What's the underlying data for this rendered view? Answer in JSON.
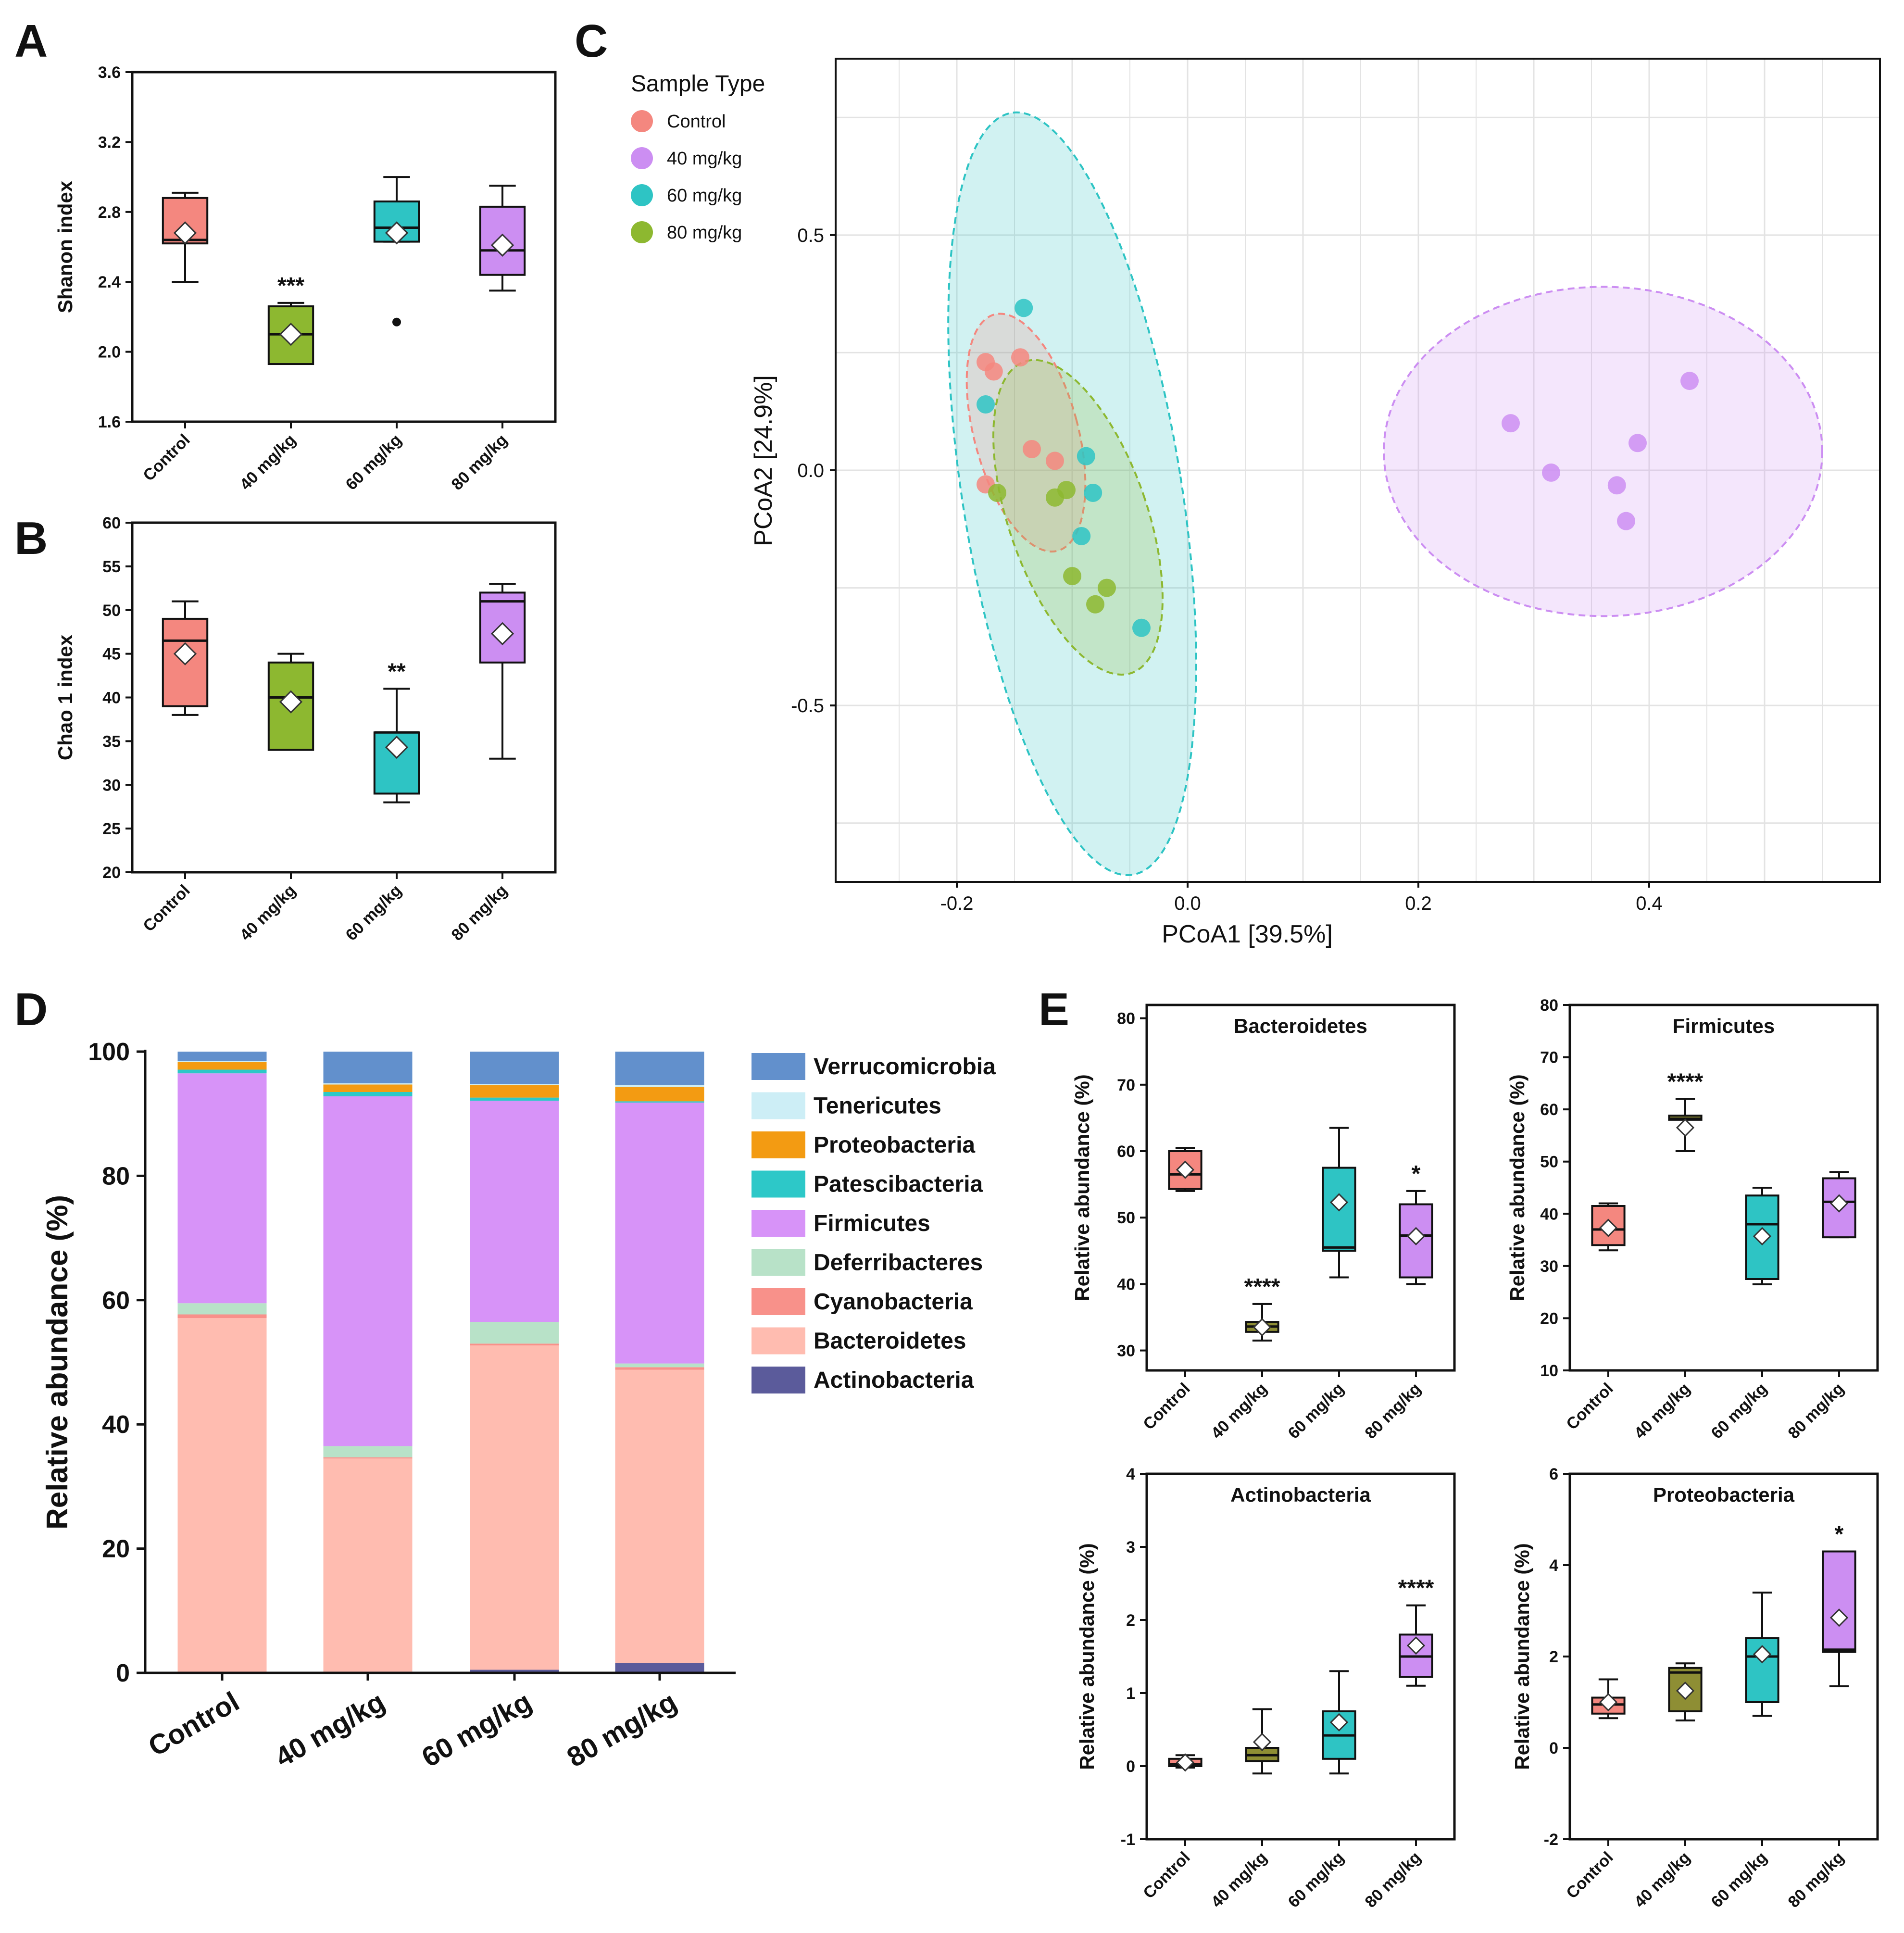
{
  "panel_labels": [
    "A",
    "B",
    "C",
    "D",
    "E"
  ],
  "colors": {
    "Control": "#f4877f",
    "40 mg/kg": "#8db830",
    "60 mg/kg": "#2ec4c4",
    "80 mg/kg": "#cc8ef2",
    "E_40 mg/kg": "#8e8e34"
  },
  "chart_data": [
    {
      "id": "A",
      "type": "box",
      "title": "",
      "ylabel": "Shanon index",
      "categories": [
        "Control",
        "40 mg/kg",
        "60 mg/kg",
        "80 mg/kg"
      ],
      "box_colors": [
        "#f4877f",
        "#8db830",
        "#2ec4c4",
        "#cc8ef2"
      ],
      "ylim": [
        1.6,
        3.6
      ],
      "yticks": [
        1.6,
        2.0,
        2.4,
        2.8,
        3.2,
        3.6
      ],
      "ytick_labels": [
        "1.6",
        "2.0",
        "2.4",
        "2.8",
        "3.2",
        "3.6"
      ],
      "boxes": [
        {
          "min": 2.4,
          "q1": 2.62,
          "median": 2.64,
          "q3": 2.88,
          "max": 2.91,
          "mean": 2.68,
          "outliers": [],
          "sig": ""
        },
        {
          "min": 1.93,
          "q1": 1.93,
          "median": 2.1,
          "q3": 2.26,
          "max": 2.28,
          "mean": 2.1,
          "outliers": [],
          "sig": "***"
        },
        {
          "min": 2.63,
          "q1": 2.63,
          "median": 2.71,
          "q3": 2.86,
          "max": 3.0,
          "mean": 2.68,
          "outliers": [
            2.17
          ],
          "sig": ""
        },
        {
          "min": 2.35,
          "q1": 2.44,
          "median": 2.58,
          "q3": 2.83,
          "max": 2.95,
          "mean": 2.61,
          "outliers": [],
          "sig": ""
        }
      ]
    },
    {
      "id": "B",
      "type": "box",
      "title": "",
      "ylabel": "Chao 1 index",
      "categories": [
        "Control",
        "40 mg/kg",
        "60 mg/kg",
        "80 mg/kg"
      ],
      "box_colors": [
        "#f4877f",
        "#8db830",
        "#2ec4c4",
        "#cc8ef2"
      ],
      "ylim": [
        20,
        60
      ],
      "yticks": [
        20,
        25,
        30,
        35,
        40,
        45,
        50,
        55,
        60
      ],
      "ytick_labels": [
        "20",
        "25",
        "30",
        "35",
        "40",
        "45",
        "50",
        "55",
        "60"
      ],
      "boxes": [
        {
          "min": 38,
          "q1": 39,
          "median": 46.5,
          "q3": 49,
          "max": 51,
          "mean": 45,
          "outliers": [],
          "sig": ""
        },
        {
          "min": 34,
          "q1": 34,
          "median": 40,
          "q3": 44,
          "max": 45,
          "mean": 39.5,
          "outliers": [],
          "sig": ""
        },
        {
          "min": 28,
          "q1": 29,
          "median": 36,
          "q3": 36,
          "max": 41,
          "mean": 34.3,
          "outliers": [],
          "sig": "**"
        },
        {
          "min": 33,
          "q1": 44,
          "median": 51,
          "q3": 52,
          "max": 53,
          "mean": 47.3,
          "outliers": [],
          "sig": ""
        }
      ]
    },
    {
      "id": "C",
      "type": "scatter",
      "title": "",
      "xlabel": "PCoA1 [39.5%]",
      "ylabel": "PCoA2 [24.9%]",
      "xlim": [
        -0.305,
        0.6
      ],
      "ylim": [
        -0.875,
        0.875
      ],
      "xticks": [
        -0.2,
        0.0,
        0.2,
        0.4
      ],
      "xtick_labels": [
        "-0.2",
        "0.0",
        "0.2",
        "0.4"
      ],
      "yticks": [
        -0.5,
        0.0,
        0.5
      ],
      "ytick_labels": [
        "-0.5",
        "0.0",
        "0.5"
      ],
      "grid": true,
      "legend_title": "Sample Type",
      "legend_position": "top-left",
      "series": [
        {
          "name": "Control",
          "color": "#f4877f",
          "points": [
            [
              -0.175,
              0.23
            ],
            [
              -0.168,
              0.21
            ],
            [
              -0.145,
              0.24
            ],
            [
              -0.135,
              0.045
            ],
            [
              -0.115,
              0.02
            ],
            [
              -0.175,
              -0.03
            ]
          ],
          "ellipse": {
            "cx": -0.14,
            "cy": 0.08,
            "rx": 0.045,
            "ry": 0.26,
            "angle": -15
          }
        },
        {
          "name": "40 mg/kg",
          "color": "#cc8ef2",
          "points": [
            [
              0.28,
              0.1
            ],
            [
              0.315,
              -0.005
            ],
            [
              0.435,
              0.19
            ],
            [
              0.39,
              0.058
            ],
            [
              0.372,
              -0.032
            ],
            [
              0.38,
              -0.108
            ]
          ],
          "ellipse": {
            "cx": 0.36,
            "cy": 0.04,
            "rx": 0.19,
            "ry": 0.35,
            "angle": 0
          }
        },
        {
          "name": "60 mg/kg",
          "color": "#2ec4c4",
          "points": [
            [
              -0.142,
              0.345
            ],
            [
              -0.175,
              0.14
            ],
            [
              -0.088,
              0.03
            ],
            [
              -0.082,
              -0.048
            ],
            [
              -0.092,
              -0.14
            ],
            [
              -0.04,
              -0.335
            ]
          ],
          "ellipse": {
            "cx": -0.1,
            "cy": -0.05,
            "rx": 0.095,
            "ry": 0.82,
            "angle": -9
          }
        },
        {
          "name": "80 mg/kg",
          "color": "#8db830",
          "points": [
            [
              -0.165,
              -0.048
            ],
            [
              -0.115,
              -0.058
            ],
            [
              -0.105,
              -0.042
            ],
            [
              -0.1,
              -0.225
            ],
            [
              -0.08,
              -0.285
            ],
            [
              -0.07,
              -0.25
            ]
          ],
          "ellipse": {
            "cx": -0.095,
            "cy": -0.1,
            "rx": 0.06,
            "ry": 0.35,
            "angle": -19
          }
        }
      ]
    },
    {
      "id": "D",
      "type": "bar",
      "stacked": true,
      "title": "",
      "xlabel": "",
      "ylabel": "Relative abundance (%)",
      "categories": [
        "Control",
        "40 mg/kg",
        "60 mg/kg",
        "80 mg/kg"
      ],
      "ylim": [
        0,
        100
      ],
      "yticks": [
        0,
        20,
        40,
        60,
        80,
        100
      ],
      "ytick_labels": [
        "0",
        "20",
        "40",
        "60",
        "80",
        "100"
      ],
      "legend_position": "right",
      "series": [
        {
          "name": "Actinobacteria",
          "color": "#5b5b9b",
          "values": [
            0.1,
            0.2,
            0.5,
            1.6
          ]
        },
        {
          "name": "Bacteroidetes",
          "color": "#ffbcb0",
          "values": [
            57.0,
            34.3,
            52.2,
            47.2
          ]
        },
        {
          "name": "Cyanobacteria",
          "color": "#f8918a",
          "values": [
            0.6,
            0.2,
            0.3,
            0.4
          ]
        },
        {
          "name": "Deferribacteres",
          "color": "#b8e2c8",
          "values": [
            1.8,
            1.8,
            3.5,
            0.6
          ]
        },
        {
          "name": "Firmicutes",
          "color": "#d793f8",
          "values": [
            37.0,
            56.3,
            35.6,
            42.0
          ]
        },
        {
          "name": "Patescibacteria",
          "color": "#2dc8c8",
          "values": [
            0.6,
            0.7,
            0.5,
            0.2
          ]
        },
        {
          "name": "Proteobacteria",
          "color": "#f39b12",
          "values": [
            1.2,
            1.2,
            2.0,
            2.3
          ]
        },
        {
          "name": "Tenericutes",
          "color": "#cdeef6",
          "values": [
            0.2,
            0.2,
            0.2,
            0.3
          ]
        },
        {
          "name": "Verrucomicrobia",
          "color": "#6290cc",
          "values": [
            1.5,
            5.1,
            5.2,
            5.4
          ]
        }
      ]
    },
    {
      "id": "E1",
      "type": "box",
      "title": "Bacteroidetes",
      "ylabel": "Relative abundance (%)",
      "categories": [
        "Control",
        "40 mg/kg",
        "60 mg/kg",
        "80 mg/kg"
      ],
      "box_colors": [
        "#f4877f",
        "#8e8e34",
        "#2ec4c4",
        "#cc8ef2"
      ],
      "ylim": [
        27,
        82
      ],
      "yticks": [
        30,
        40,
        50,
        60,
        70,
        80
      ],
      "ytick_labels": [
        "30",
        "40",
        "50",
        "60",
        "70",
        "80"
      ],
      "boxes": [
        {
          "min": 54,
          "q1": 54.3,
          "median": 56.5,
          "q3": 60,
          "max": 60.5,
          "mean": 57.2,
          "outliers": [],
          "sig": ""
        },
        {
          "min": 31.5,
          "q1": 32.8,
          "median": 33.6,
          "q3": 34.3,
          "max": 37,
          "mean": 33.5,
          "outliers": [],
          "sig": "****"
        },
        {
          "min": 41,
          "q1": 45,
          "median": 45.5,
          "q3": 57.5,
          "max": 63.5,
          "mean": 52.3,
          "outliers": [],
          "sig": ""
        },
        {
          "min": 40,
          "q1": 41,
          "median": 47.3,
          "q3": 52,
          "max": 54,
          "mean": 47.2,
          "outliers": [],
          "sig": "*"
        }
      ]
    },
    {
      "id": "E2",
      "type": "box",
      "title": "Firmicutes",
      "ylabel": "Relative abundance (%)",
      "categories": [
        "Control",
        "40 mg/kg",
        "60 mg/kg",
        "80 mg/kg"
      ],
      "box_colors": [
        "#f4877f",
        "#8e8e34",
        "#2ec4c4",
        "#cc8ef2"
      ],
      "ylim": [
        10,
        80
      ],
      "yticks": [
        10,
        20,
        30,
        40,
        50,
        60,
        70,
        80
      ],
      "ytick_labels": [
        "10",
        "20",
        "30",
        "40",
        "50",
        "60",
        "70",
        "80"
      ],
      "boxes": [
        {
          "min": 33,
          "q1": 34,
          "median": 37,
          "q3": 41.5,
          "max": 42,
          "mean": 37.3,
          "outliers": [],
          "sig": ""
        },
        {
          "min": 52,
          "q1": 58,
          "median": 58.2,
          "q3": 58.8,
          "max": 62,
          "mean": 56.5,
          "outliers": [],
          "sig": "****"
        },
        {
          "min": 26.5,
          "q1": 27.5,
          "median": 38,
          "q3": 43.5,
          "max": 45,
          "mean": 35.7,
          "outliers": [],
          "sig": ""
        },
        {
          "min": 35.5,
          "q1": 35.5,
          "median": 42.3,
          "q3": 46.8,
          "max": 48,
          "mean": 42,
          "outliers": [],
          "sig": ""
        }
      ]
    },
    {
      "id": "E3",
      "type": "box",
      "title": "Actinobacteria",
      "ylabel": "Relative abundance (%)",
      "categories": [
        "Control",
        "40 mg/kg",
        "60 mg/kg",
        "80 mg/kg"
      ],
      "box_colors": [
        "#f4877f",
        "#8e8e34",
        "#2ec4c4",
        "#cc8ef2"
      ],
      "ylim": [
        -1,
        4
      ],
      "yticks": [
        -1,
        0,
        1,
        2,
        3,
        4
      ],
      "ytick_labels": [
        "-1",
        "0",
        "1",
        "2",
        "3",
        "4"
      ],
      "boxes": [
        {
          "min": -0.02,
          "q1": 0.0,
          "median": 0.03,
          "q3": 0.1,
          "max": 0.15,
          "mean": 0.05,
          "outliers": [],
          "sig": ""
        },
        {
          "min": -0.1,
          "q1": 0.07,
          "median": 0.15,
          "q3": 0.25,
          "max": 0.78,
          "mean": 0.33,
          "outliers": [],
          "sig": ""
        },
        {
          "min": -0.1,
          "q1": 0.1,
          "median": 0.42,
          "q3": 0.75,
          "max": 1.3,
          "mean": 0.6,
          "outliers": [],
          "sig": ""
        },
        {
          "min": 1.1,
          "q1": 1.22,
          "median": 1.5,
          "q3": 1.8,
          "max": 2.2,
          "mean": 1.65,
          "outliers": [],
          "sig": "****"
        }
      ]
    },
    {
      "id": "E4",
      "type": "box",
      "title": "Proteobacteria",
      "ylabel": "Relative abundance (%)",
      "categories": [
        "Control",
        "40 mg/kg",
        "60 mg/kg",
        "80 mg/kg"
      ],
      "box_colors": [
        "#f4877f",
        "#8e8e34",
        "#2ec4c4",
        "#cc8ef2"
      ],
      "ylim": [
        -2,
        6
      ],
      "yticks": [
        -2,
        0,
        2,
        4,
        6
      ],
      "ytick_labels": [
        "-2",
        "0",
        "2",
        "4",
        "6"
      ],
      "boxes": [
        {
          "min": 0.65,
          "q1": 0.75,
          "median": 0.95,
          "q3": 1.1,
          "max": 1.5,
          "mean": 1.0,
          "outliers": [],
          "sig": ""
        },
        {
          "min": 0.6,
          "q1": 0.8,
          "median": 1.65,
          "q3": 1.75,
          "max": 1.85,
          "mean": 1.25,
          "outliers": [],
          "sig": ""
        },
        {
          "min": 0.7,
          "q1": 1.0,
          "median": 2.0,
          "q3": 2.4,
          "max": 3.4,
          "mean": 2.05,
          "outliers": [],
          "sig": ""
        },
        {
          "min": 1.35,
          "q1": 2.1,
          "median": 2.15,
          "q3": 4.3,
          "max": 4.3,
          "mean": 2.85,
          "outliers": [],
          "sig": "*"
        }
      ]
    }
  ]
}
